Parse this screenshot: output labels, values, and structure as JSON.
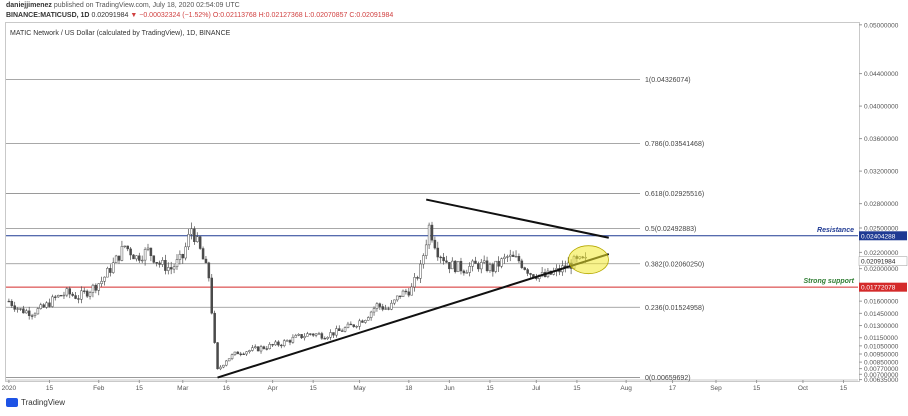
{
  "header": {
    "author": "daniejjimenez",
    "published": "published on TradingView.com, July 18, 2020 02:54:09 UTC",
    "symbol": "BINANCE:MATICUSD, 1D",
    "last": "0.02091984",
    "change": "▼ −0.00032324 (−1.52%)",
    "ohlc": "O:0.02113768 H:0.02127368 L:0.02070857 C:0.02091984"
  },
  "chart_title": "MATIC Network / US Dollar (calculated by TradingView), 1D, BINANCE",
  "footer": {
    "brand": "TradingView"
  },
  "colors": {
    "candle": "#4a4a4a",
    "fib_line": "#8c8c8c",
    "resistance": "#1f3a93",
    "support": "#d42a2a",
    "trendline": "#111111",
    "highlight": "#f2ea2e"
  },
  "chart_data": {
    "type": "candlestick",
    "title": "MATIC Network / US Dollar (calculated by TradingView), 1D, BINANCE",
    "x_range": [
      "2019-12-31",
      "2020-10-20"
    ],
    "ylim": [
      0.0063,
      0.0501
    ],
    "y_ticks": [
      "0.05000000",
      "0.04400000",
      "0.04000000",
      "0.03600000",
      "0.03200000",
      "0.02800000",
      "0.02500000",
      "0.02200000",
      "0.02000000",
      "0.01600000",
      "0.01450000",
      "0.01300000",
      "0.01150000",
      "0.01050000",
      "0.00950000",
      "0.00850000",
      "0.00770000",
      "0.00700000",
      "0.00635000"
    ],
    "y_tick_values": [
      0.05,
      0.044,
      0.04,
      0.036,
      0.032,
      0.028,
      0.025,
      0.022,
      0.02,
      0.016,
      0.0145,
      0.013,
      0.0115,
      0.0105,
      0.0095,
      0.0085,
      0.0077,
      0.007,
      0.00635
    ],
    "x_ticks": [
      {
        "label": "2020",
        "date": "2020-01-01"
      },
      {
        "label": "15",
        "date": "2020-01-15"
      },
      {
        "label": "Feb",
        "date": "2020-02-01"
      },
      {
        "label": "15",
        "date": "2020-02-15"
      },
      {
        "label": "Mar",
        "date": "2020-03-01"
      },
      {
        "label": "16",
        "date": "2020-03-16"
      },
      {
        "label": "Apr",
        "date": "2020-04-01"
      },
      {
        "label": "15",
        "date": "2020-04-15"
      },
      {
        "label": "May",
        "date": "2020-05-01"
      },
      {
        "label": "18",
        "date": "2020-05-18"
      },
      {
        "label": "Jun",
        "date": "2020-06-01"
      },
      {
        "label": "15",
        "date": "2020-06-15"
      },
      {
        "label": "Jul",
        "date": "2020-07-01"
      },
      {
        "label": "15",
        "date": "2020-07-15"
      },
      {
        "label": "Aug",
        "date": "2020-08-01"
      },
      {
        "label": "17",
        "date": "2020-08-17"
      },
      {
        "label": "Sep",
        "date": "2020-09-01"
      },
      {
        "label": "15",
        "date": "2020-09-15"
      },
      {
        "label": "Oct",
        "date": "2020-10-01"
      },
      {
        "label": "15",
        "date": "2020-10-15"
      }
    ],
    "fib_levels": [
      {
        "label": "1(0.04326074)",
        "value": 0.04326074
      },
      {
        "label": "0.786(0.03541468)",
        "value": 0.03541468
      },
      {
        "label": "0.618(0.02925516)",
        "value": 0.02925516
      },
      {
        "label": "0.5(0.02492883)",
        "value": 0.02492883
      },
      {
        "label": "0.382(0.02060250)",
        "value": 0.0206025
      },
      {
        "label": "0.236(0.01524958)",
        "value": 0.01524958
      },
      {
        "label": "0(0.00659692)",
        "value": 0.00659692
      }
    ],
    "resistance": {
      "label": "Resistance",
      "value": 0.02404288,
      "value_label": "0.02404288"
    },
    "support": {
      "label": "Strong support",
      "value": 0.01772078,
      "value_label": "0.01772078"
    },
    "last_price": {
      "value": 0.02091984,
      "value_label": "0.02091984"
    },
    "trendlines": [
      {
        "name": "rising",
        "from": {
          "date": "2020-03-13",
          "value": 0.0066
        },
        "to": {
          "date": "2020-07-26",
          "value": 0.0218
        }
      },
      {
        "name": "falling",
        "from": {
          "date": "2020-05-24",
          "value": 0.0285
        },
        "to": {
          "date": "2020-07-26",
          "value": 0.0238
        }
      }
    ],
    "highlight": {
      "date": "2020-07-19",
      "value": 0.0211
    },
    "closes": [
      {
        "date": "2020-01-01",
        "value": 0.016
      },
      {
        "date": "2020-01-05",
        "value": 0.0149
      },
      {
        "date": "2020-01-09",
        "value": 0.0146
      },
      {
        "date": "2020-01-13",
        "value": 0.0152
      },
      {
        "date": "2020-01-17",
        "value": 0.0164
      },
      {
        "date": "2020-01-21",
        "value": 0.017
      },
      {
        "date": "2020-01-25",
        "value": 0.0165
      },
      {
        "date": "2020-01-29",
        "value": 0.0174
      },
      {
        "date": "2020-02-02",
        "value": 0.0185
      },
      {
        "date": "2020-02-06",
        "value": 0.0205
      },
      {
        "date": "2020-02-10",
        "value": 0.0228
      },
      {
        "date": "2020-02-14",
        "value": 0.0214
      },
      {
        "date": "2020-02-18",
        "value": 0.0222
      },
      {
        "date": "2020-02-22",
        "value": 0.0206
      },
      {
        "date": "2020-02-26",
        "value": 0.02
      },
      {
        "date": "2020-03-01",
        "value": 0.0214
      },
      {
        "date": "2020-03-04",
        "value": 0.025
      },
      {
        "date": "2020-03-07",
        "value": 0.0222
      },
      {
        "date": "2020-03-10",
        "value": 0.019
      },
      {
        "date": "2020-03-12",
        "value": 0.0106
      },
      {
        "date": "2020-03-13",
        "value": 0.0075
      },
      {
        "date": "2020-03-16",
        "value": 0.0088
      },
      {
        "date": "2020-03-20",
        "value": 0.0097
      },
      {
        "date": "2020-03-25",
        "value": 0.01
      },
      {
        "date": "2020-03-30",
        "value": 0.0104
      },
      {
        "date": "2020-04-04",
        "value": 0.0108
      },
      {
        "date": "2020-04-09",
        "value": 0.0115
      },
      {
        "date": "2020-04-14",
        "value": 0.012
      },
      {
        "date": "2020-04-19",
        "value": 0.0118
      },
      {
        "date": "2020-04-24",
        "value": 0.0123
      },
      {
        "date": "2020-04-29",
        "value": 0.0131
      },
      {
        "date": "2020-05-03",
        "value": 0.014
      },
      {
        "date": "2020-05-07",
        "value": 0.0155
      },
      {
        "date": "2020-05-11",
        "value": 0.015
      },
      {
        "date": "2020-05-15",
        "value": 0.0168
      },
      {
        "date": "2020-05-19",
        "value": 0.0175
      },
      {
        "date": "2020-05-22",
        "value": 0.02
      },
      {
        "date": "2020-05-25",
        "value": 0.0252
      },
      {
        "date": "2020-05-28",
        "value": 0.0222
      },
      {
        "date": "2020-06-01",
        "value": 0.0205
      },
      {
        "date": "2020-06-06",
        "value": 0.02
      },
      {
        "date": "2020-06-11",
        "value": 0.0205
      },
      {
        "date": "2020-06-16",
        "value": 0.02
      },
      {
        "date": "2020-06-21",
        "value": 0.0214
      },
      {
        "date": "2020-06-25",
        "value": 0.021
      },
      {
        "date": "2020-06-29",
        "value": 0.0195
      },
      {
        "date": "2020-07-04",
        "value": 0.019
      },
      {
        "date": "2020-07-09",
        "value": 0.0198
      },
      {
        "date": "2020-07-14",
        "value": 0.0208
      },
      {
        "date": "2020-07-18",
        "value": 0.0209
      }
    ]
  }
}
